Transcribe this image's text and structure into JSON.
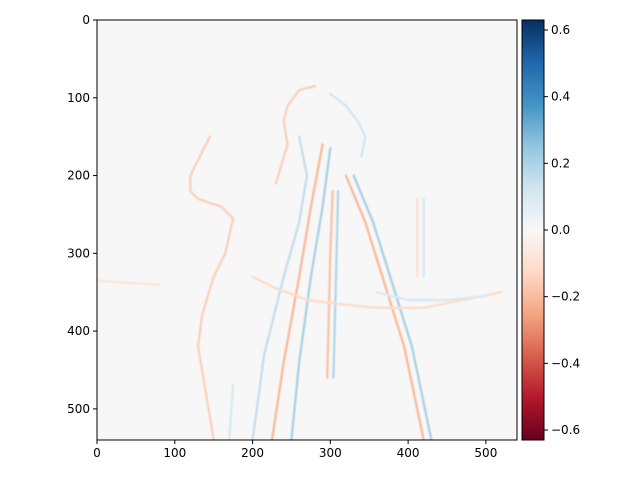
{
  "chart_data": {
    "type": "heatmap",
    "title": "",
    "xlabel": "",
    "ylabel": "",
    "image_size": [
      540,
      540
    ],
    "xlim": [
      0,
      540
    ],
    "ylim": [
      540,
      0
    ],
    "xticks": [
      0,
      100,
      200,
      300,
      400,
      500
    ],
    "yticks": [
      0,
      100,
      200,
      300,
      400,
      500
    ],
    "xtick_labels": [
      "0",
      "100",
      "200",
      "300",
      "400",
      "500"
    ],
    "ytick_labels": [
      "0",
      "100",
      "200",
      "300",
      "400",
      "500"
    ],
    "colormap": "RdBu",
    "colorbar": {
      "vmin": -0.63,
      "vmax": 0.63,
      "ticks": [
        -0.6,
        -0.4,
        -0.2,
        0.0,
        0.2,
        0.4,
        0.6
      ],
      "tick_labels": [
        "−0.6",
        "−0.4",
        "−0.2",
        "0.0",
        "0.2",
        "0.4",
        "0.6"
      ]
    },
    "background_value": 0.0,
    "colors": {
      "negative_strong": "#67001f",
      "negative_mid": "#d6604d",
      "neutral": "#f7f7f7",
      "positive_mid": "#4393c3",
      "positive_strong": "#053061"
    },
    "description_features": [
      {
        "kind": "edge",
        "sign": "negative",
        "value": -0.15,
        "path": [
          [
            150,
            540
          ],
          [
            140,
            480
          ],
          [
            130,
            420
          ],
          [
            135,
            380
          ],
          [
            150,
            330
          ],
          [
            165,
            300
          ],
          [
            175,
            255
          ],
          [
            160,
            240
          ],
          [
            130,
            230
          ],
          [
            120,
            220
          ],
          [
            120,
            200
          ],
          [
            130,
            180
          ],
          [
            145,
            150
          ]
        ]
      },
      {
        "kind": "edge",
        "sign": "negative",
        "value": -0.15,
        "path": [
          [
            280,
            85
          ],
          [
            260,
            90
          ],
          [
            245,
            110
          ],
          [
            240,
            130
          ],
          [
            245,
            160
          ],
          [
            230,
            210
          ]
        ]
      },
      {
        "kind": "edge",
        "sign": "positive",
        "value": 0.12,
        "path": [
          [
            300,
            95
          ],
          [
            320,
            110
          ],
          [
            335,
            130
          ],
          [
            345,
            150
          ],
          [
            340,
            175
          ]
        ]
      },
      {
        "kind": "edge",
        "sign": "negative",
        "value": -0.2,
        "path": [
          [
            290,
            160
          ],
          [
            275,
            240
          ],
          [
            260,
            330
          ],
          [
            240,
            440
          ],
          [
            225,
            540
          ]
        ]
      },
      {
        "kind": "edge",
        "sign": "positive",
        "value": 0.2,
        "path": [
          [
            300,
            165
          ],
          [
            290,
            240
          ],
          [
            275,
            330
          ],
          [
            260,
            440
          ],
          [
            250,
            540
          ]
        ]
      },
      {
        "kind": "edge",
        "sign": "negative",
        "value": -0.2,
        "path": [
          [
            320,
            200
          ],
          [
            345,
            260
          ],
          [
            370,
            340
          ],
          [
            395,
            420
          ],
          [
            420,
            540
          ]
        ]
      },
      {
        "kind": "edge",
        "sign": "positive",
        "value": 0.2,
        "path": [
          [
            330,
            200
          ],
          [
            355,
            260
          ],
          [
            380,
            340
          ],
          [
            405,
            420
          ],
          [
            430,
            540
          ]
        ]
      },
      {
        "kind": "edge",
        "sign": "negative",
        "value": -0.18,
        "path": [
          [
            303,
            220
          ],
          [
            300,
            300
          ],
          [
            298,
            380
          ],
          [
            296,
            460
          ]
        ]
      },
      {
        "kind": "edge",
        "sign": "positive",
        "value": 0.18,
        "path": [
          [
            310,
            220
          ],
          [
            308,
            300
          ],
          [
            306,
            380
          ],
          [
            304,
            460
          ]
        ]
      },
      {
        "kind": "edge",
        "sign": "positive",
        "value": 0.15,
        "path": [
          [
            260,
            150
          ],
          [
            270,
            200
          ],
          [
            260,
            260
          ],
          [
            240,
            330
          ],
          [
            215,
            430
          ],
          [
            200,
            540
          ]
        ]
      },
      {
        "kind": "edge",
        "sign": "negative",
        "value": -0.12,
        "path": [
          [
            200,
            330
          ],
          [
            230,
            345
          ],
          [
            270,
            360
          ],
          [
            310,
            365
          ],
          [
            360,
            370
          ],
          [
            420,
            370
          ],
          [
            470,
            360
          ],
          [
            520,
            350
          ]
        ]
      },
      {
        "kind": "edge",
        "sign": "positive",
        "value": 0.1,
        "path": [
          [
            360,
            350
          ],
          [
            400,
            360
          ],
          [
            450,
            360
          ],
          [
            500,
            355
          ]
        ]
      },
      {
        "kind": "edge",
        "sign": "negative",
        "value": -0.1,
        "path": [
          [
            412,
            230
          ],
          [
            412,
            330
          ]
        ]
      },
      {
        "kind": "edge",
        "sign": "positive",
        "value": 0.1,
        "path": [
          [
            420,
            230
          ],
          [
            420,
            330
          ]
        ]
      },
      {
        "kind": "edge",
        "sign": "negative",
        "value": -0.08,
        "path": [
          [
            0,
            335
          ],
          [
            40,
            338
          ],
          [
            80,
            340
          ]
        ]
      },
      {
        "kind": "edge",
        "sign": "positive",
        "value": 0.1,
        "path": [
          [
            175,
            470
          ],
          [
            170,
            540
          ]
        ]
      }
    ]
  }
}
